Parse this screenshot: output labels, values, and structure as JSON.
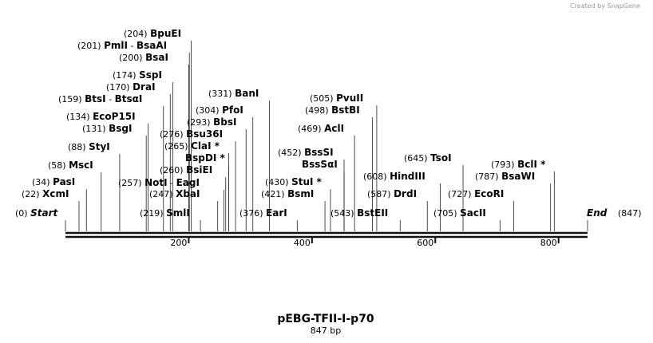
{
  "brand": "Created by SnapGene",
  "title": "pEBG-TFII-I-p70",
  "subtitle": "847 bp",
  "scale": {
    "ticks": [
      200,
      400,
      600,
      800
    ]
  },
  "ends": {
    "start": {
      "site_label": "(0)",
      "label": "Start",
      "position": 0
    },
    "end": {
      "label": "End",
      "site_label": "(847)",
      "position": 847
    }
  },
  "enzymes": [
    {
      "site_label": "(204)",
      "name": "BpuEI",
      "position": 204
    },
    {
      "site_label": "(201)",
      "name": "PmlI",
      "sep": "-",
      "name2": "BsaAI",
      "position": 201
    },
    {
      "site_label": "(200)",
      "name": "BsaI",
      "position": 200
    },
    {
      "site_label": "(174)",
      "name": "SspI",
      "position": 174
    },
    {
      "site_label": "(170)",
      "name": "DraI",
      "position": 170
    },
    {
      "site_label": "(159)",
      "name": "BtsI",
      "sep": "-",
      "name2": "BtsαI",
      "position": 159
    },
    {
      "site_label": "(134)",
      "name": "EcoP15I",
      "position": 134
    },
    {
      "site_label": "(131)",
      "name": "BsgI",
      "position": 131
    },
    {
      "site_label": "(88)",
      "name": "StyI",
      "position": 88
    },
    {
      "site_label": "(58)",
      "name": "MscI",
      "position": 58
    },
    {
      "site_label": "(34)",
      "name": "PasI",
      "position": 34
    },
    {
      "site_label": "(22)",
      "name": "XcmI",
      "position": 22
    },
    {
      "site_label": "(257)",
      "name": "NotI",
      "sep": "-",
      "name2": "EagI",
      "position": 257
    },
    {
      "site_label": "(247)",
      "name": "XbaI",
      "position": 247
    },
    {
      "site_label": "(219)",
      "name": "SmlI",
      "position": 219
    },
    {
      "site_label": "(260)",
      "name": "BsiEI",
      "position": 260
    },
    {
      "name": "BspDI *",
      "position": 265
    },
    {
      "site_label": "(265)",
      "name": "ClaI *",
      "position": 265
    },
    {
      "site_label": "(276)",
      "name": "Bsu36I",
      "position": 276
    },
    {
      "site_label": "(293)",
      "name": "BbsI",
      "position": 293
    },
    {
      "site_label": "(304)",
      "name": "PfoI",
      "position": 304
    },
    {
      "site_label": "(331)",
      "name": "BanI",
      "position": 331
    },
    {
      "site_label": "(376)",
      "name": "EarI",
      "position": 376
    },
    {
      "site_label": "(421)",
      "name": "BsmI",
      "position": 421
    },
    {
      "site_label": "(430)",
      "name": "StuI *",
      "position": 430
    },
    {
      "site_label": "(452)",
      "name": "BssSI",
      "position": 452
    },
    {
      "name": "BssSαI",
      "position": 452
    },
    {
      "site_label": "(469)",
      "name": "AclI",
      "position": 469
    },
    {
      "site_label": "(498)",
      "name": "BstBI",
      "position": 498
    },
    {
      "site_label": "(505)",
      "name": "PvuII",
      "position": 505
    },
    {
      "site_label": "(543)",
      "name": "BstEII",
      "position": 543
    },
    {
      "site_label": "(587)",
      "name": "DrdI",
      "position": 587
    },
    {
      "site_label": "(608)",
      "name": "HindIII",
      "position": 608
    },
    {
      "site_label": "(645)",
      "name": "TsoI",
      "position": 645
    },
    {
      "site_label": "(705)",
      "name": "SacII",
      "position": 705
    },
    {
      "site_label": "(727)",
      "name": "EcoRI",
      "position": 727
    },
    {
      "site_label": "(787)",
      "name": "BsaWI",
      "position": 787
    },
    {
      "site_label": "(793)",
      "name": "BclI *",
      "position": 793
    }
  ]
}
